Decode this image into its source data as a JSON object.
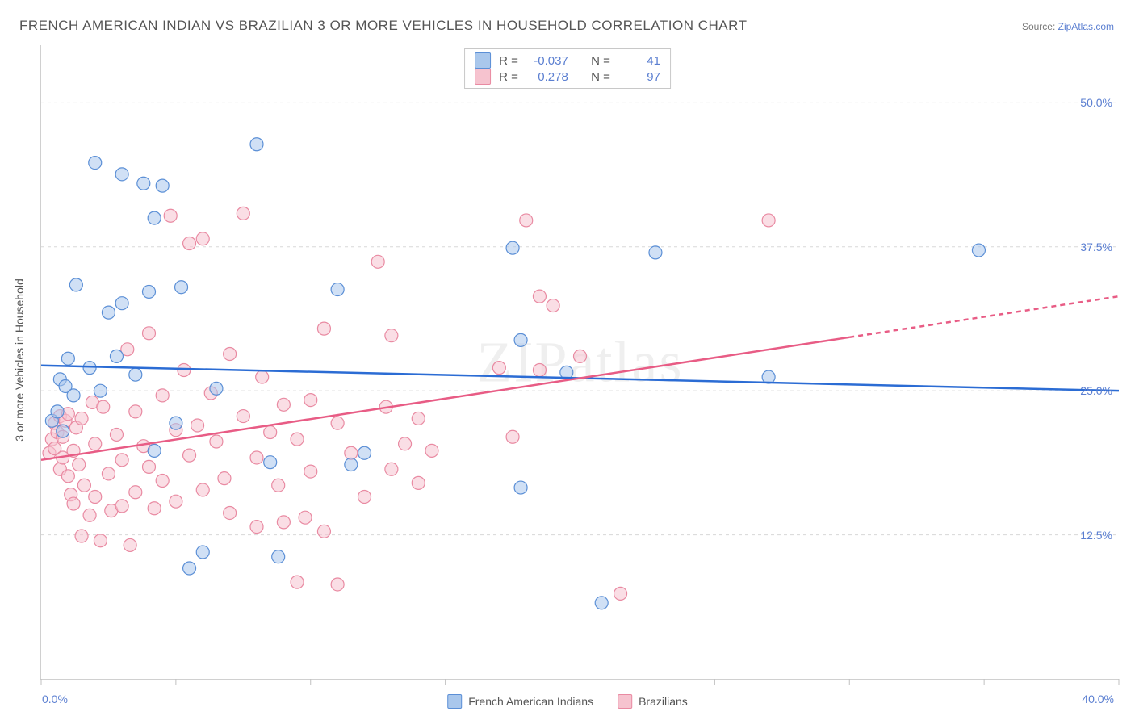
{
  "page": {
    "title": "FRENCH AMERICAN INDIAN VS BRAZILIAN 3 OR MORE VEHICLES IN HOUSEHOLD CORRELATION CHART",
    "source_label": "Source:",
    "source_name": "ZipAtlas.com",
    "watermark": "ZIPatlas"
  },
  "chart": {
    "type": "scatter",
    "ylabel": "3 or more Vehicles in Household",
    "xlim": [
      0,
      40
    ],
    "ylim": [
      0,
      55
    ],
    "x_ticks": [
      0,
      5,
      10,
      15,
      20,
      25,
      30,
      35,
      40
    ],
    "x_tick_labels": {
      "0": "0.0%",
      "40": "40.0%"
    },
    "y_gridlines": [
      12.5,
      25.0,
      37.5,
      50.0
    ],
    "y_tick_labels": [
      "12.5%",
      "25.0%",
      "37.5%",
      "50.0%"
    ],
    "background_color": "#ffffff",
    "grid_color": "#d8d8d8",
    "axis_color": "#d0d0d0",
    "label_color": "#555555",
    "tick_label_color": "#5b7fd1",
    "marker_radius": 8,
    "marker_stroke_width": 1.2,
    "marker_opacity": 0.55,
    "series": [
      {
        "name": "French American Indians",
        "fill_color": "#a9c7ec",
        "stroke_color": "#5b8fd6",
        "line_color": "#2b6cd4",
        "line_width": 2.5,
        "regression": {
          "y_at_x0": 27.2,
          "y_at_xmax": 25.0,
          "dashed_from_x": null
        },
        "stats": {
          "R": "-0.037",
          "N": "41"
        },
        "points": [
          [
            0.4,
            22.4
          ],
          [
            0.6,
            23.2
          ],
          [
            0.7,
            26.0
          ],
          [
            0.8,
            21.5
          ],
          [
            0.9,
            25.4
          ],
          [
            1.0,
            27.8
          ],
          [
            1.2,
            24.6
          ],
          [
            1.3,
            34.2
          ],
          [
            1.8,
            27.0
          ],
          [
            2.0,
            44.8
          ],
          [
            2.2,
            25.0
          ],
          [
            2.5,
            31.8
          ],
          [
            2.8,
            28.0
          ],
          [
            3.0,
            32.6
          ],
          [
            3.0,
            43.8
          ],
          [
            3.5,
            26.4
          ],
          [
            3.8,
            43.0
          ],
          [
            4.0,
            33.6
          ],
          [
            4.2,
            19.8
          ],
          [
            4.2,
            40.0
          ],
          [
            4.5,
            42.8
          ],
          [
            5.0,
            22.2
          ],
          [
            5.2,
            34.0
          ],
          [
            5.5,
            9.6
          ],
          [
            6.0,
            11.0
          ],
          [
            6.5,
            25.2
          ],
          [
            8.0,
            46.4
          ],
          [
            8.5,
            18.8
          ],
          [
            8.8,
            10.6
          ],
          [
            11.0,
            33.8
          ],
          [
            11.5,
            18.6
          ],
          [
            12.0,
            19.6
          ],
          [
            17.5,
            37.4
          ],
          [
            17.8,
            16.6
          ],
          [
            17.8,
            29.4
          ],
          [
            19.5,
            26.6
          ],
          [
            20.8,
            6.6
          ],
          [
            22.8,
            37.0
          ],
          [
            27.0,
            26.2
          ],
          [
            34.8,
            37.2
          ]
        ]
      },
      {
        "name": "Brazilians",
        "fill_color": "#f6c3cf",
        "stroke_color": "#e98aa2",
        "line_color": "#e85c85",
        "line_width": 2.5,
        "regression": {
          "y_at_x0": 19.0,
          "y_at_xmax": 33.2,
          "dashed_from_x": 30
        },
        "stats": {
          "R": "0.278",
          "N": "97"
        },
        "points": [
          [
            0.3,
            19.6
          ],
          [
            0.4,
            20.8
          ],
          [
            0.5,
            22.2
          ],
          [
            0.5,
            20.0
          ],
          [
            0.6,
            21.4
          ],
          [
            0.7,
            22.8
          ],
          [
            0.7,
            18.2
          ],
          [
            0.8,
            19.2
          ],
          [
            0.8,
            21.0
          ],
          [
            0.9,
            22.4
          ],
          [
            1.0,
            17.6
          ],
          [
            1.0,
            23.0
          ],
          [
            1.1,
            16.0
          ],
          [
            1.2,
            19.8
          ],
          [
            1.2,
            15.2
          ],
          [
            1.3,
            21.8
          ],
          [
            1.4,
            18.6
          ],
          [
            1.5,
            12.4
          ],
          [
            1.5,
            22.6
          ],
          [
            1.6,
            16.8
          ],
          [
            1.8,
            14.2
          ],
          [
            1.9,
            24.0
          ],
          [
            2.0,
            20.4
          ],
          [
            2.0,
            15.8
          ],
          [
            2.2,
            12.0
          ],
          [
            2.3,
            23.6
          ],
          [
            2.5,
            17.8
          ],
          [
            2.6,
            14.6
          ],
          [
            2.8,
            21.2
          ],
          [
            3.0,
            19.0
          ],
          [
            3.0,
            15.0
          ],
          [
            3.2,
            28.6
          ],
          [
            3.3,
            11.6
          ],
          [
            3.5,
            23.2
          ],
          [
            3.5,
            16.2
          ],
          [
            3.8,
            20.2
          ],
          [
            4.0,
            18.4
          ],
          [
            4.0,
            30.0
          ],
          [
            4.2,
            14.8
          ],
          [
            4.5,
            24.6
          ],
          [
            4.5,
            17.2
          ],
          [
            4.8,
            40.2
          ],
          [
            5.0,
            21.6
          ],
          [
            5.0,
            15.4
          ],
          [
            5.3,
            26.8
          ],
          [
            5.5,
            19.4
          ],
          [
            5.5,
            37.8
          ],
          [
            5.8,
            22.0
          ],
          [
            6.0,
            16.4
          ],
          [
            6.0,
            38.2
          ],
          [
            6.3,
            24.8
          ],
          [
            6.5,
            20.6
          ],
          [
            6.8,
            17.4
          ],
          [
            7.0,
            28.2
          ],
          [
            7.0,
            14.4
          ],
          [
            7.5,
            22.8
          ],
          [
            7.5,
            40.4
          ],
          [
            8.0,
            19.2
          ],
          [
            8.0,
            13.2
          ],
          [
            8.2,
            26.2
          ],
          [
            8.5,
            21.4
          ],
          [
            8.8,
            16.8
          ],
          [
            9.0,
            23.8
          ],
          [
            9.0,
            13.6
          ],
          [
            9.5,
            20.8
          ],
          [
            9.5,
            8.4
          ],
          [
            9.8,
            14.0
          ],
          [
            10.0,
            24.2
          ],
          [
            10.0,
            18.0
          ],
          [
            10.5,
            12.8
          ],
          [
            10.5,
            30.4
          ],
          [
            11.0,
            22.2
          ],
          [
            11.0,
            8.2
          ],
          [
            11.5,
            19.6
          ],
          [
            12.0,
            15.8
          ],
          [
            12.5,
            36.2
          ],
          [
            12.8,
            23.6
          ],
          [
            13.0,
            18.2
          ],
          [
            13.0,
            29.8
          ],
          [
            13.5,
            20.4
          ],
          [
            14.0,
            17.0
          ],
          [
            14.0,
            22.6
          ],
          [
            14.5,
            19.8
          ],
          [
            17.0,
            27.0
          ],
          [
            17.5,
            21.0
          ],
          [
            18.0,
            39.8
          ],
          [
            18.5,
            33.2
          ],
          [
            18.5,
            26.8
          ],
          [
            19.0,
            32.4
          ],
          [
            20.0,
            28.0
          ],
          [
            21.5,
            7.4
          ],
          [
            27.0,
            39.8
          ]
        ]
      }
    ]
  },
  "legend_bottom": {
    "series1_label": "French American Indians",
    "series2_label": "Brazilians"
  },
  "legend_top": {
    "r_label": "R =",
    "n_label": "N ="
  }
}
